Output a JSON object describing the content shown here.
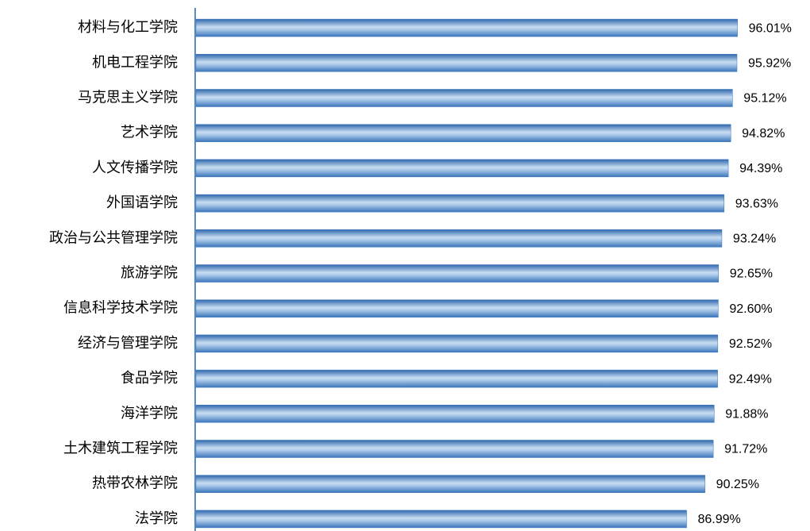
{
  "chart_data": {
    "type": "hbar",
    "categories": [
      "材料与化工学院",
      "机电工程学院",
      "马克思主义学院",
      "艺术学院",
      "人文传播学院",
      "外国语学院",
      "政治与公共管理学院",
      "旅游学院",
      "信息科学技术学院",
      "经济与管理学院",
      "食品学院",
      "海洋学院",
      "土木建筑工程学院",
      "热带农林学院",
      "法学院"
    ],
    "values": [
      96.01,
      95.92,
      95.12,
      94.82,
      94.39,
      93.63,
      93.24,
      92.65,
      92.6,
      92.52,
      92.49,
      91.88,
      91.72,
      90.25,
      86.99
    ],
    "value_labels": [
      "96.01%",
      "95.92%",
      "95.12%",
      "94.82%",
      "94.39%",
      "93.63%",
      "93.24%",
      "92.65%",
      "92.60%",
      "92.52%",
      "92.49%",
      "91.88%",
      "91.72%",
      "90.25%",
      "86.99%"
    ],
    "color": "#3a78c0",
    "xlim": [
      0,
      100
    ]
  }
}
